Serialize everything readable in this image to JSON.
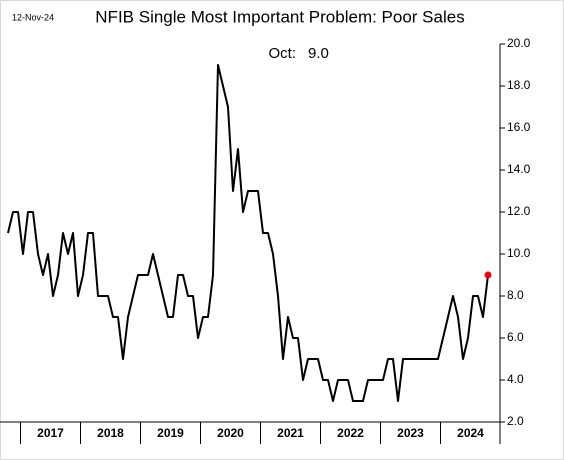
{
  "date_label": "12-Nov-24",
  "chart_data": {
    "type": "line",
    "title": "NFIB Single Most Important Problem: Poor Sales",
    "annotation": {
      "text": "Oct:",
      "value_label": "9.0"
    },
    "categories": [
      null,
      null,
      null,
      "2017",
      null,
      null,
      null,
      null,
      null,
      null,
      null,
      null,
      null,
      null,
      null,
      "2018",
      null,
      null,
      null,
      null,
      null,
      null,
      null,
      null,
      null,
      null,
      null,
      "2019",
      null,
      null,
      null,
      null,
      null,
      null,
      null,
      null,
      null,
      null,
      null,
      "2020",
      null,
      null,
      null,
      null,
      null,
      null,
      null,
      null,
      null,
      null,
      null,
      "2021",
      null,
      null,
      null,
      null,
      null,
      null,
      null,
      null,
      null,
      null,
      null,
      "2022",
      null,
      null,
      null,
      null,
      null,
      null,
      null,
      null,
      null,
      null,
      null,
      "2023",
      null,
      null,
      null,
      null,
      null,
      null,
      null,
      null,
      null,
      null,
      null,
      "2024",
      null,
      null,
      null,
      null,
      null,
      null,
      null,
      null,
      null
    ],
    "values": [
      11,
      12,
      12,
      10,
      12,
      12,
      10,
      9,
      10,
      8,
      9,
      11,
      10,
      11,
      8,
      9,
      11,
      11,
      8,
      8,
      8,
      7,
      7,
      5,
      7,
      8,
      9,
      9,
      9,
      10,
      9,
      8,
      7,
      7,
      9,
      9,
      8,
      8,
      6,
      7,
      7,
      9,
      19,
      18,
      17,
      13,
      15,
      12,
      13,
      13,
      13,
      11,
      11,
      10,
      8,
      5,
      7,
      6,
      6,
      4,
      5,
      5,
      5,
      4,
      4,
      3,
      4,
      4,
      4,
      3,
      3,
      3,
      4,
      4,
      4,
      4,
      5,
      5,
      3,
      5,
      5,
      5,
      5,
      5,
      5,
      5,
      5,
      6,
      7,
      8,
      7,
      5,
      6,
      8,
      8,
      7,
      9
    ],
    "color": "#000000",
    "highlight_color": "#e8000b",
    "ylim": [
      2,
      20
    ],
    "yticks": [
      {
        "value": 2,
        "label": "2.0"
      },
      {
        "value": 4,
        "label": "4.0"
      },
      {
        "value": 6,
        "label": "6.0"
      },
      {
        "value": 8,
        "label": "8.0"
      },
      {
        "value": 10,
        "label": "10.0"
      },
      {
        "value": 12,
        "label": "12.0"
      },
      {
        "value": 14,
        "label": "14.0"
      },
      {
        "value": 16,
        "label": "16.0"
      },
      {
        "value": 18,
        "label": "18.0"
      },
      {
        "value": 20,
        "label": "20.0"
      }
    ]
  }
}
